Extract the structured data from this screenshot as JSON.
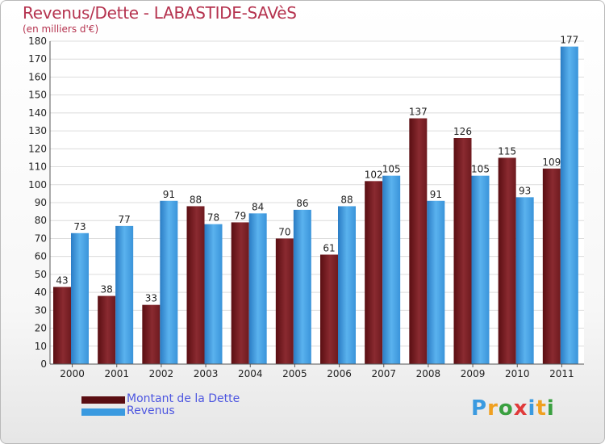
{
  "header": {
    "title": "Revenus/Dette - LABASTIDE-SAVèS",
    "subtitle": "(en milliers d'€)"
  },
  "chart_data": {
    "type": "bar",
    "categories": [
      "2000",
      "2001",
      "2002",
      "2003",
      "2004",
      "2005",
      "2006",
      "2007",
      "2008",
      "2009",
      "2010",
      "2011"
    ],
    "series": [
      {
        "name": "Montant de la Dette",
        "color": "#7a1f24",
        "values": [
          43,
          38,
          33,
          88,
          79,
          70,
          61,
          102,
          137,
          126,
          115,
          109
        ]
      },
      {
        "name": "Revenus",
        "color": "#3a9ae0",
        "values": [
          73,
          77,
          91,
          78,
          84,
          86,
          88,
          105,
          91,
          105,
          93,
          177
        ]
      }
    ],
    "ylim": [
      0,
      180
    ],
    "yticks": [
      0,
      10,
      20,
      30,
      40,
      50,
      60,
      70,
      80,
      90,
      100,
      110,
      120,
      130,
      140,
      150,
      160,
      170,
      180
    ],
    "grid": true,
    "legend_position": "bottom-left"
  },
  "legend": {
    "items": [
      {
        "label": "Montant de la Dette",
        "color": "#5a0e12"
      },
      {
        "label": "Revenus",
        "color": "#3a9ae0"
      }
    ]
  },
  "logo": {
    "letters": [
      "P",
      "r",
      "o",
      "x",
      "i",
      "t",
      "i"
    ],
    "colors": [
      "#3a9ae0",
      "#f0a020",
      "#3aa040",
      "#e03a3a",
      "#3a9ae0",
      "#f0a020",
      "#3aa040"
    ]
  }
}
